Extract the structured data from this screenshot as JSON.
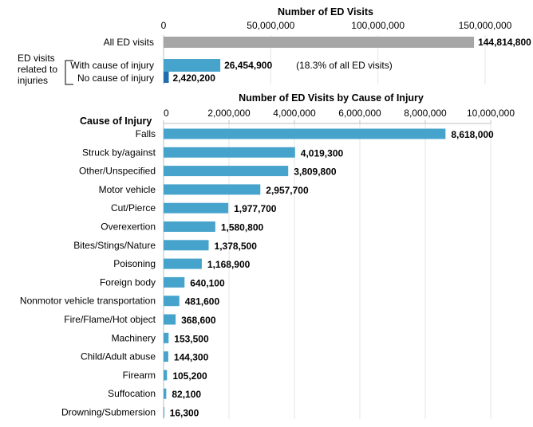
{
  "chart_data": [
    {
      "type": "bar",
      "orientation": "horizontal",
      "title": "Number of ED Visits",
      "xlim": [
        0,
        150000000
      ],
      "ticks": [
        "0",
        "50,000,000",
        "100,000,000",
        "150,000,000"
      ],
      "tick_values": [
        0,
        50000000,
        100000000,
        150000000
      ],
      "grid": true,
      "group_label": "ED visits related to injuries",
      "group_label_lines": [
        "ED visits",
        "related to",
        "injuries"
      ],
      "categories": [
        "All ED visits",
        "With cause of injury",
        "No cause of injury"
      ],
      "values": [
        144814800,
        26454900,
        2420200
      ],
      "labels": [
        "144,814,800",
        "26,454,900",
        "2,420,200"
      ],
      "annotations": [
        "",
        "(18.3% of all ED visits)",
        ""
      ],
      "colors": [
        "#a6a6a6",
        "#46a3cb",
        "#1f6db0"
      ]
    },
    {
      "type": "bar",
      "orientation": "horizontal",
      "title": "Number of ED Visits by Cause of Injury",
      "ylabel": "Cause of Injury",
      "xlim": [
        0,
        10000000
      ],
      "ticks": [
        "0",
        "2,000,000",
        "4,000,000",
        "6,000,000",
        "8,000,000",
        "10,000,000"
      ],
      "tick_values": [
        0,
        2000000,
        4000000,
        6000000,
        8000000,
        10000000
      ],
      "grid": true,
      "color": "#46a3cb",
      "categories": [
        "Falls",
        "Struck by/against",
        "Other/Unspecified",
        "Motor vehicle",
        "Cut/Pierce",
        "Overexertion",
        "Bites/Stings/Nature",
        "Poisoning",
        "Foreign body",
        "Nonmotor vehicle transportation",
        "Fire/Flame/Hot object",
        "Machinery",
        "Child/Adult abuse",
        "Firearm",
        "Suffocation",
        "Drowning/Submersion"
      ],
      "values": [
        8618000,
        4019300,
        3809800,
        2957700,
        1977700,
        1580800,
        1378500,
        1168900,
        640100,
        481600,
        368600,
        153500,
        144300,
        105200,
        82100,
        16300
      ],
      "labels": [
        "8,618,000",
        "4,019,300",
        "3,809,800",
        "2,957,700",
        "1,977,700",
        "1,580,800",
        "1,378,500",
        "1,168,900",
        "640,100",
        "481,600",
        "368,600",
        "153,500",
        "144,300",
        "105,200",
        "82,100",
        "16,300"
      ]
    }
  ]
}
